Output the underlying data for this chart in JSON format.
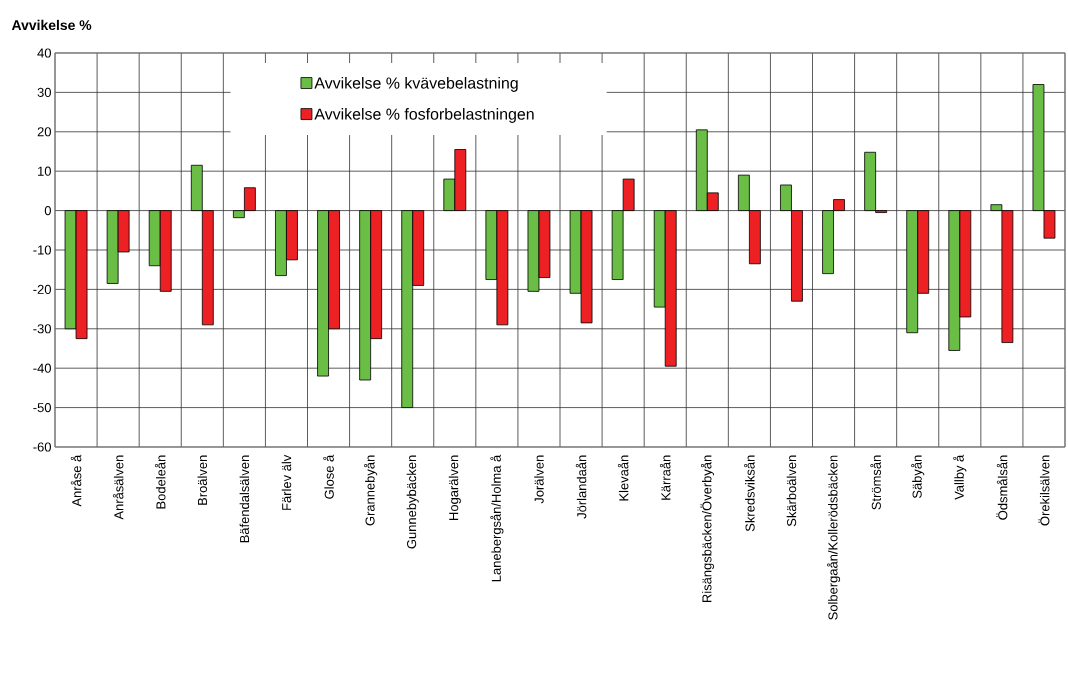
{
  "chart_data": {
    "type": "bar",
    "ylabel": "Avvikelse %",
    "categories": [
      "Anråse å",
      "Anråsälven",
      "Bodeleån",
      "Broälven",
      "Bäfendalsälven",
      "Färlev älv",
      "Glose å",
      "Grannebyån",
      "Gunnebybäcken",
      "Hogarälven",
      "Lanebergsån/Holma å",
      "Jorälven",
      "Jörlandaån",
      "Klevaån",
      "Kärraån",
      "Risängsbäcken/Överbyån",
      "Skredsviksån",
      "Skärboälven",
      "Solbergaån/Kollerödsbäcken",
      "Strömsån",
      "Säbyån",
      "Vallby å",
      "Ödsmålsån",
      "Örekilsälven"
    ],
    "series": [
      {
        "name": "Avvikelse % kvävebelastning",
        "color": "#6abd45",
        "values": [
          -30,
          -18.5,
          -14,
          11.5,
          -1.8,
          -16.5,
          -42,
          -43,
          -50,
          8,
          -17.5,
          -20.5,
          -21,
          -17.5,
          -24.5,
          20.5,
          9,
          6.5,
          -16,
          14.8,
          -31,
          -35.5,
          1.5,
          32
        ]
      },
      {
        "name": "Avvikelse % fosforbelastningen",
        "color": "#ed2024",
        "values": [
          -32.5,
          -10.5,
          -20.5,
          -29,
          5.8,
          -12.5,
          -30,
          -32.5,
          -19,
          15.5,
          -29,
          -17,
          -28.5,
          8,
          -39.5,
          4.5,
          -13.5,
          -23,
          2.8,
          -0.5,
          -21,
          -27,
          -33.5,
          -7
        ]
      }
    ],
    "ylim": [
      -60,
      40
    ],
    "yticks": [
      -60,
      -50,
      -40,
      -30,
      -20,
      -10,
      0,
      10,
      20,
      30,
      40
    ],
    "grid": true,
    "legend": "top"
  }
}
